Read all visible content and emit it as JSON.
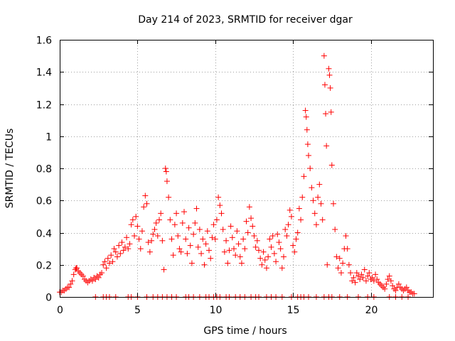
{
  "chart_data": {
    "type": "scatter",
    "title": "Day 214 of 2023, SRMTID for receiver dgar",
    "xlabel": "GPS time / hours",
    "ylabel": "SRMTID / TECUs",
    "xlim": [
      0,
      24
    ],
    "ylim": [
      0,
      1.6
    ],
    "xticks": [
      0,
      5,
      10,
      15,
      20
    ],
    "xtick_labels": [
      "0",
      "5",
      "10",
      "15",
      "20"
    ],
    "yticks": [
      0,
      0.2,
      0.4,
      0.6,
      0.8,
      1.0,
      1.2,
      1.4,
      1.6
    ],
    "ytick_labels": [
      "0",
      "0.2",
      "0.4",
      "0.6",
      "0.8",
      "1",
      "1.2",
      "1.4",
      "1.6"
    ],
    "grid": true,
    "marker": "+",
    "color": "#ff0000",
    "series": [
      {
        "name": "SRMTID",
        "points": [
          [
            0.0,
            0.03
          ],
          [
            0.1,
            0.03
          ],
          [
            0.2,
            0.04
          ],
          [
            0.3,
            0.04
          ],
          [
            0.4,
            0.05
          ],
          [
            0.5,
            0.06
          ],
          [
            0.6,
            0.06
          ],
          [
            0.7,
            0.08
          ],
          [
            0.8,
            0.1
          ],
          [
            0.9,
            0.14
          ],
          [
            1.0,
            0.17
          ],
          [
            1.05,
            0.18
          ],
          [
            1.1,
            0.18
          ],
          [
            1.2,
            0.16
          ],
          [
            1.3,
            0.15
          ],
          [
            1.4,
            0.14
          ],
          [
            1.5,
            0.13
          ],
          [
            1.6,
            0.11
          ],
          [
            1.7,
            0.1
          ],
          [
            1.8,
            0.09
          ],
          [
            1.9,
            0.1
          ],
          [
            2.0,
            0.11
          ],
          [
            2.1,
            0.1
          ],
          [
            2.2,
            0.12
          ],
          [
            2.3,
            0.11
          ],
          [
            2.4,
            0.13
          ],
          [
            2.5,
            0.12
          ],
          [
            2.6,
            0.14
          ],
          [
            2.7,
            0.15
          ],
          [
            2.8,
            0.2
          ],
          [
            2.9,
            0.22
          ],
          [
            3.0,
            0.18
          ],
          [
            3.1,
            0.24
          ],
          [
            3.2,
            0.21
          ],
          [
            3.3,
            0.26
          ],
          [
            3.4,
            0.22
          ],
          [
            3.5,
            0.3
          ],
          [
            3.6,
            0.28
          ],
          [
            3.7,
            0.25
          ],
          [
            3.8,
            0.32
          ],
          [
            3.9,
            0.27
          ],
          [
            4.0,
            0.34
          ],
          [
            4.1,
            0.29
          ],
          [
            4.2,
            0.31
          ],
          [
            4.3,
            0.37
          ],
          [
            4.4,
            0.3
          ],
          [
            4.5,
            0.33
          ],
          [
            4.6,
            0.45
          ],
          [
            4.7,
            0.48
          ],
          [
            4.8,
            0.38
          ],
          [
            4.9,
            0.5
          ],
          [
            5.0,
            0.44
          ],
          [
            5.1,
            0.36
          ],
          [
            5.2,
            0.3
          ],
          [
            5.3,
            0.41
          ],
          [
            5.4,
            0.56
          ],
          [
            5.5,
            0.63
          ],
          [
            5.6,
            0.58
          ],
          [
            5.7,
            0.34
          ],
          [
            5.8,
            0.28
          ],
          [
            5.9,
            0.35
          ],
          [
            6.0,
            0.39
          ],
          [
            6.1,
            0.42
          ],
          [
            6.2,
            0.46
          ],
          [
            6.3,
            0.38
          ],
          [
            6.4,
            0.48
          ],
          [
            6.5,
            0.52
          ],
          [
            6.6,
            0.35
          ],
          [
            6.7,
            0.17
          ],
          [
            6.8,
            0.8
          ],
          [
            6.85,
            0.78
          ],
          [
            6.9,
            0.72
          ],
          [
            7.0,
            0.62
          ],
          [
            7.1,
            0.48
          ],
          [
            7.2,
            0.36
          ],
          [
            7.3,
            0.26
          ],
          [
            7.4,
            0.45
          ],
          [
            7.5,
            0.52
          ],
          [
            7.6,
            0.38
          ],
          [
            7.7,
            0.3
          ],
          [
            7.8,
            0.28
          ],
          [
            7.9,
            0.46
          ],
          [
            8.0,
            0.53
          ],
          [
            8.1,
            0.36
          ],
          [
            8.2,
            0.27
          ],
          [
            8.3,
            0.43
          ],
          [
            8.4,
            0.32
          ],
          [
            8.5,
            0.21
          ],
          [
            8.6,
            0.39
          ],
          [
            8.7,
            0.46
          ],
          [
            8.8,
            0.55
          ],
          [
            8.9,
            0.31
          ],
          [
            9.0,
            0.42
          ],
          [
            9.1,
            0.27
          ],
          [
            9.2,
            0.36
          ],
          [
            9.3,
            0.2
          ],
          [
            9.4,
            0.33
          ],
          [
            9.5,
            0.41
          ],
          [
            9.6,
            0.29
          ],
          [
            9.7,
            0.24
          ],
          [
            9.8,
            0.37
          ],
          [
            9.9,
            0.45
          ],
          [
            10.0,
            0.36
          ],
          [
            10.1,
            0.48
          ],
          [
            10.2,
            0.62
          ],
          [
            10.3,
            0.57
          ],
          [
            10.4,
            0.52
          ],
          [
            10.5,
            0.42
          ],
          [
            10.6,
            0.28
          ],
          [
            10.7,
            0.35
          ],
          [
            10.8,
            0.21
          ],
          [
            10.9,
            0.29
          ],
          [
            11.0,
            0.44
          ],
          [
            11.1,
            0.37
          ],
          [
            11.2,
            0.3
          ],
          [
            11.3,
            0.26
          ],
          [
            11.4,
            0.41
          ],
          [
            11.5,
            0.33
          ],
          [
            11.6,
            0.25
          ],
          [
            11.7,
            0.21
          ],
          [
            11.8,
            0.36
          ],
          [
            11.9,
            0.3
          ],
          [
            12.0,
            0.47
          ],
          [
            12.1,
            0.4
          ],
          [
            12.2,
            0.56
          ],
          [
            12.3,
            0.49
          ],
          [
            12.4,
            0.44
          ],
          [
            12.5,
            0.38
          ],
          [
            12.6,
            0.31
          ],
          [
            12.7,
            0.35
          ],
          [
            12.8,
            0.29
          ],
          [
            12.9,
            0.24
          ],
          [
            13.0,
            0.2
          ],
          [
            13.1,
            0.28
          ],
          [
            13.2,
            0.23
          ],
          [
            13.3,
            0.18
          ],
          [
            13.4,
            0.25
          ],
          [
            13.5,
            0.36
          ],
          [
            13.6,
            0.31
          ],
          [
            13.7,
            0.38
          ],
          [
            13.8,
            0.27
          ],
          [
            13.9,
            0.22
          ],
          [
            14.0,
            0.39
          ],
          [
            14.1,
            0.34
          ],
          [
            14.2,
            0.3
          ],
          [
            14.3,
            0.18
          ],
          [
            14.4,
            0.25
          ],
          [
            14.5,
            0.42
          ],
          [
            14.6,
            0.38
          ],
          [
            14.7,
            0.45
          ],
          [
            14.8,
            0.54
          ],
          [
            14.9,
            0.5
          ],
          [
            15.0,
            0.32
          ],
          [
            15.1,
            0.28
          ],
          [
            15.2,
            0.36
          ],
          [
            15.3,
            0.4
          ],
          [
            15.4,
            0.55
          ],
          [
            15.5,
            0.48
          ],
          [
            15.6,
            0.62
          ],
          [
            15.7,
            0.75
          ],
          [
            15.8,
            1.16
          ],
          [
            15.85,
            1.12
          ],
          [
            15.9,
            1.04
          ],
          [
            15.95,
            0.95
          ],
          [
            16.0,
            0.88
          ],
          [
            16.1,
            0.8
          ],
          [
            16.2,
            0.68
          ],
          [
            16.3,
            0.6
          ],
          [
            16.4,
            0.52
          ],
          [
            16.5,
            0.45
          ],
          [
            16.6,
            0.62
          ],
          [
            16.7,
            0.7
          ],
          [
            16.8,
            0.58
          ],
          [
            16.9,
            0.48
          ],
          [
            17.0,
            1.5
          ],
          [
            17.05,
            1.32
          ],
          [
            17.1,
            1.14
          ],
          [
            17.15,
            0.94
          ],
          [
            17.2,
            0.2
          ],
          [
            17.3,
            1.42
          ],
          [
            17.35,
            1.38
          ],
          [
            17.4,
            1.3
          ],
          [
            17.45,
            1.15
          ],
          [
            17.5,
            0.82
          ],
          [
            17.6,
            0.58
          ],
          [
            17.7,
            0.42
          ],
          [
            17.8,
            0.25
          ],
          [
            17.9,
            0.18
          ],
          [
            18.0,
            0.24
          ],
          [
            18.1,
            0.15
          ],
          [
            18.2,
            0.21
          ],
          [
            18.3,
            0.3
          ],
          [
            18.4,
            0.38
          ],
          [
            18.5,
            0.3
          ],
          [
            18.6,
            0.2
          ],
          [
            18.7,
            0.15
          ],
          [
            18.8,
            0.1
          ],
          [
            18.9,
            0.12
          ],
          [
            19.0,
            0.09
          ],
          [
            19.1,
            0.15
          ],
          [
            19.2,
            0.13
          ],
          [
            19.3,
            0.11
          ],
          [
            19.4,
            0.14
          ],
          [
            19.5,
            0.12
          ],
          [
            19.6,
            0.17
          ],
          [
            19.7,
            0.1
          ],
          [
            19.8,
            0.13
          ],
          [
            19.9,
            0.15
          ],
          [
            20.0,
            0.11
          ],
          [
            20.1,
            0.12
          ],
          [
            20.2,
            0.1
          ],
          [
            20.3,
            0.14
          ],
          [
            20.4,
            0.11
          ],
          [
            20.5,
            0.09
          ],
          [
            20.6,
            0.08
          ],
          [
            20.7,
            0.07
          ],
          [
            20.8,
            0.06
          ],
          [
            20.9,
            0.05
          ],
          [
            21.0,
            0.08
          ],
          [
            21.1,
            0.11
          ],
          [
            21.2,
            0.13
          ],
          [
            21.3,
            0.1
          ],
          [
            21.4,
            0.07
          ],
          [
            21.5,
            0.05
          ],
          [
            21.6,
            0.04
          ],
          [
            21.7,
            0.06
          ],
          [
            21.8,
            0.08
          ],
          [
            21.9,
            0.06
          ],
          [
            22.0,
            0.05
          ],
          [
            22.1,
            0.04
          ],
          [
            22.2,
            0.05
          ],
          [
            22.3,
            0.06
          ],
          [
            22.4,
            0.04
          ],
          [
            22.5,
            0.03
          ],
          [
            22.6,
            0.03
          ],
          [
            22.7,
            0.02
          ],
          [
            22.8,
            0.02
          ]
        ]
      }
    ],
    "zero_points_x": [
      2.3,
      2.8,
      3.0,
      3.2,
      3.6,
      4.4,
      4.6,
      5.0,
      5.6,
      6.0,
      6.3,
      6.6,
      6.9,
      7.2,
      7.5,
      8.1,
      8.3,
      8.6,
      9.0,
      9.4,
      9.6,
      9.9,
      10.1,
      10.3,
      10.7,
      10.9,
      11.3,
      11.6,
      11.9,
      12.3,
      12.6,
      12.8,
      13.3,
      13.6,
      13.9,
      14.3,
      14.9,
      15.3,
      15.5,
      15.7,
      16.0,
      16.5,
      17.0,
      17.3,
      17.5,
      18.0,
      18.5,
      19.2,
      19.8,
      20.2,
      21.2,
      21.6,
      22.0,
      22.4
    ]
  }
}
